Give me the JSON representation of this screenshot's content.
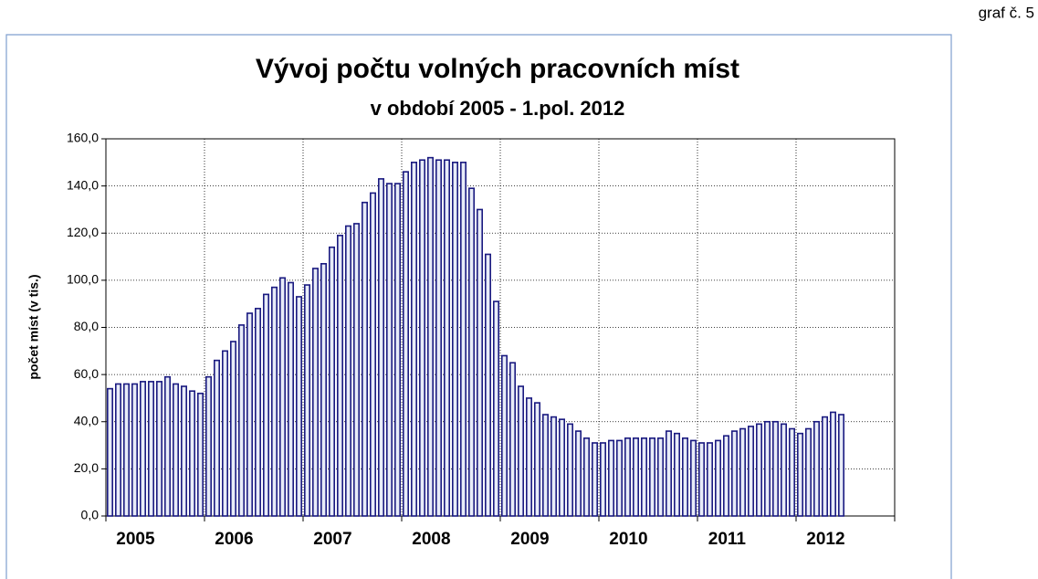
{
  "chart_data": {
    "type": "bar",
    "annotation": "graf č. 5",
    "title": "Vývoj počtu volných pracovních míst",
    "subtitle": "v období 2005 - 1.pol. 2012",
    "y_label": "počet míst (v tis.)",
    "year_labels": [
      "2005",
      "2006",
      "2007",
      "2008",
      "2009",
      "2010",
      "2011",
      "2012"
    ],
    "values": [
      54,
      56,
      56,
      56,
      57,
      57,
      57,
      59,
      56,
      55,
      53,
      52,
      59,
      66,
      70,
      74,
      81,
      86,
      88,
      94,
      97,
      101,
      99,
      93,
      98,
      105,
      107,
      114,
      119,
      123,
      124,
      133,
      137,
      143,
      141,
      141,
      146,
      150,
      151,
      152,
      151,
      151,
      150,
      150,
      139,
      130,
      111,
      91,
      68,
      65,
      55,
      50,
      48,
      43,
      42,
      41,
      39,
      36,
      33,
      31,
      31,
      32,
      32,
      33,
      33,
      33,
      33,
      33,
      36,
      35,
      33,
      32,
      31,
      31,
      32,
      34,
      36,
      37,
      38,
      39,
      40,
      40,
      39,
      37,
      35,
      37,
      40,
      42,
      44,
      43
    ],
    "color": "#1a1a80",
    "ylim": [
      0,
      160
    ],
    "yticks": [
      {
        "value": 0,
        "label": "0,0"
      },
      {
        "value": 20,
        "label": "20,0"
      },
      {
        "value": 40,
        "label": "40,0"
      },
      {
        "value": 60,
        "label": "60,0"
      },
      {
        "value": 80,
        "label": "80,0"
      },
      {
        "value": 100,
        "label": "100,0"
      },
      {
        "value": 120,
        "label": "120,0"
      },
      {
        "value": 140,
        "label": "140,0"
      },
      {
        "value": 160,
        "label": "160,0"
      }
    ],
    "grid": true
  }
}
